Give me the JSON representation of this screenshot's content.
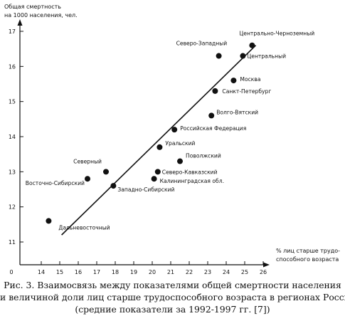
{
  "chart_data": {
    "type": "scatter",
    "ylabel_lines": [
      "Общая смертность",
      "на 1000 населения, чел."
    ],
    "xlabel_lines": [
      "% лиц старше трудо-",
      "способного возраста"
    ],
    "x_ticks": [
      "0",
      "14",
      "15",
      "16",
      "17",
      "18",
      "19",
      "20",
      "21",
      "22",
      "23",
      "24",
      "25",
      "26"
    ],
    "y_ticks": [
      "11",
      "12",
      "13",
      "14",
      "15",
      "16",
      "17"
    ],
    "xlim": [
      14,
      26
    ],
    "ylim": [
      11,
      17
    ],
    "points": [
      {
        "name": "Дальневосточный",
        "x": 14.4,
        "y": 11.6
      },
      {
        "name": "Восточно-Сибирский",
        "x": 16.5,
        "y": 12.8
      },
      {
        "name": "Северный",
        "x": 17.5,
        "y": 13.0
      },
      {
        "name": "Западно-Сибирский",
        "x": 17.9,
        "y": 12.6
      },
      {
        "name": "Калининградская обл.",
        "x": 20.1,
        "y": 12.8
      },
      {
        "name": "Северо-Кавказский",
        "x": 20.3,
        "y": 13.0
      },
      {
        "name": "Уральский",
        "x": 20.4,
        "y": 13.7
      },
      {
        "name": "Поволжский",
        "x": 21.5,
        "y": 13.3
      },
      {
        "name": "Российская Федерация",
        "x": 21.2,
        "y": 14.2
      },
      {
        "name": "Волго-Вятский",
        "x": 23.2,
        "y": 14.6
      },
      {
        "name": "Санкт-Петербург",
        "x": 23.4,
        "y": 15.3
      },
      {
        "name": "Москва",
        "x": 24.4,
        "y": 15.6
      },
      {
        "name": "Северо-Западный",
        "x": 23.6,
        "y": 16.3
      },
      {
        "name": "Центральный",
        "x": 24.9,
        "y": 16.3
      },
      {
        "name": "Центрально-Черноземный",
        "x": 25.4,
        "y": 16.6
      }
    ],
    "trend_line": {
      "x": [
        15.1,
        25.6
      ],
      "y": [
        11.2,
        16.6
      ]
    },
    "grid": false,
    "legend": "none"
  },
  "caption": {
    "line1": "Рис. 3. Взаимосвязь между показателями общей смертности населения",
    "line2": "и величиной доли лиц старше трудоспособного возраста в регионах России",
    "line3": "(средние показатели за 1992-1997 гг. [7])"
  }
}
